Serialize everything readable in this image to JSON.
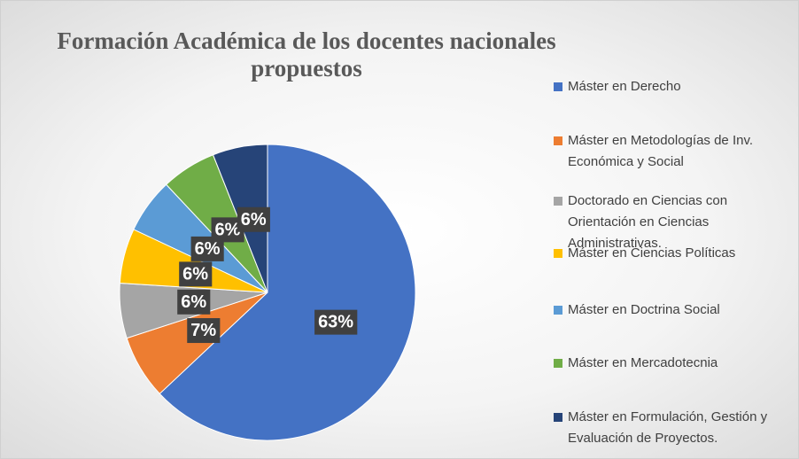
{
  "chart_data": {
    "type": "pie",
    "title": "Formación Académica de los docentes nacionales propuestos",
    "categories": [
      "Máster en Derecho",
      "Máster en Metodologías de Inv. Económica y Social",
      "Doctorado en Ciencias con Orientación en Ciencias Administrativas.",
      "Máster en Ciencias Políticas",
      "Máster en Doctrina Social",
      "Máster en Mercadotecnia",
      "Máster en Formulación, Gestión y Evaluación de Proyectos."
    ],
    "values": [
      63,
      7,
      6,
      6,
      6,
      6,
      6
    ],
    "value_labels": [
      "63%",
      "7%",
      "6%",
      "6%",
      "6%",
      "6%",
      "6%"
    ],
    "colors": [
      "#4472c4",
      "#ed7d31",
      "#a5a5a5",
      "#ffc000",
      "#5b9bd5",
      "#70ad47",
      "#264478"
    ],
    "legend": "right"
  }
}
